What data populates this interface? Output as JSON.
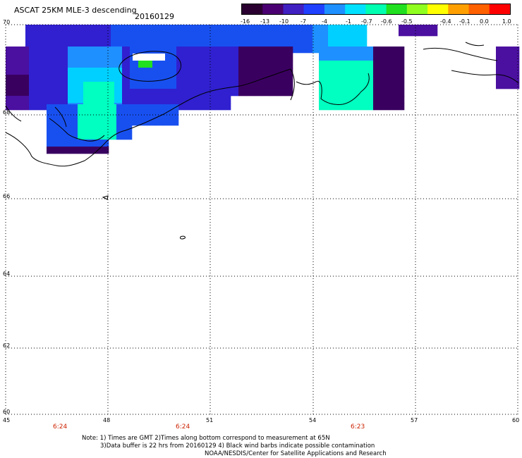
{
  "header": {
    "title": "ASCAT 25KM MLE-3 descending",
    "date": "20160129"
  },
  "colorbar": {
    "labels": [
      "-16",
      "-13",
      "-10",
      "-7",
      "-4",
      "-1",
      "-0.7",
      "-0.6",
      "-0.5",
      "-0.4",
      "-0.1",
      "0.0",
      "1.0"
    ],
    "colors": [
      "#2a0030",
      "#4a0070",
      "#4020c0",
      "#2040ff",
      "#1e90ff",
      "#00e0ff",
      "#00ffb0",
      "#20e020",
      "#90ff20",
      "#ffff00",
      "#ffa000",
      "#ff6000",
      "#ff0000"
    ]
  },
  "axes": {
    "lat_labels": [
      "70",
      "68",
      "66",
      "64",
      "62",
      "60"
    ],
    "lon_labels": [
      "45",
      "48",
      "51",
      "54",
      "57",
      "60"
    ]
  },
  "times": [
    "6:24",
    "6:24",
    "6:23"
  ],
  "notes": {
    "line1": "Note: 1) Times are GMT 2)Times along bottom correspond to measurement at 65N",
    "line2": "3)Data buffer is 22 hrs from 20160129 4) Black wind barbs indicate possible contamination",
    "line3": "NOAA/NESDIS/Center for Satellite Applications and Research"
  }
}
